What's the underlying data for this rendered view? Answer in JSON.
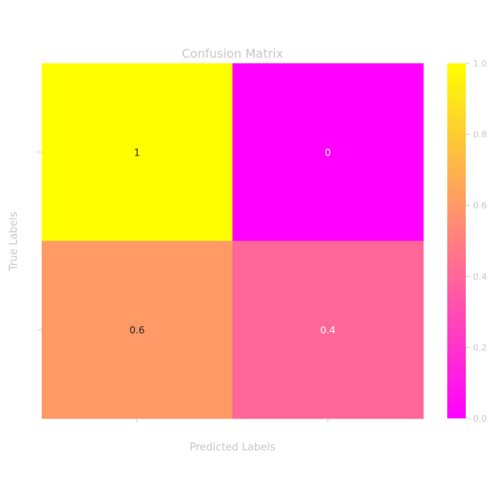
{
  "chart_data": {
    "type": "heatmap",
    "title": "Confusion Matrix",
    "xlabel": "Predicted Labels",
    "ylabel": "True Labels",
    "x_tick_labels": [
      "",
      ""
    ],
    "y_tick_labels": [
      "",
      ""
    ],
    "matrix": [
      [
        1,
        0
      ],
      [
        0.6,
        0.4
      ]
    ],
    "cell_labels": [
      [
        "1",
        "0"
      ],
      [
        "0.6",
        "0.4"
      ]
    ],
    "colormap": "spring",
    "colormap_stops": [
      "#ff00ff",
      "#ffff00"
    ],
    "colorbar": {
      "range": [
        0.0,
        1.0
      ],
      "ticks": [
        0.0,
        0.2,
        0.4,
        0.6,
        0.8,
        1.0
      ],
      "tick_labels": [
        "0.0",
        "0.2",
        "0.4",
        "0.6",
        "0.8",
        "1.0"
      ]
    },
    "text_color": "#c8c8c8"
  }
}
